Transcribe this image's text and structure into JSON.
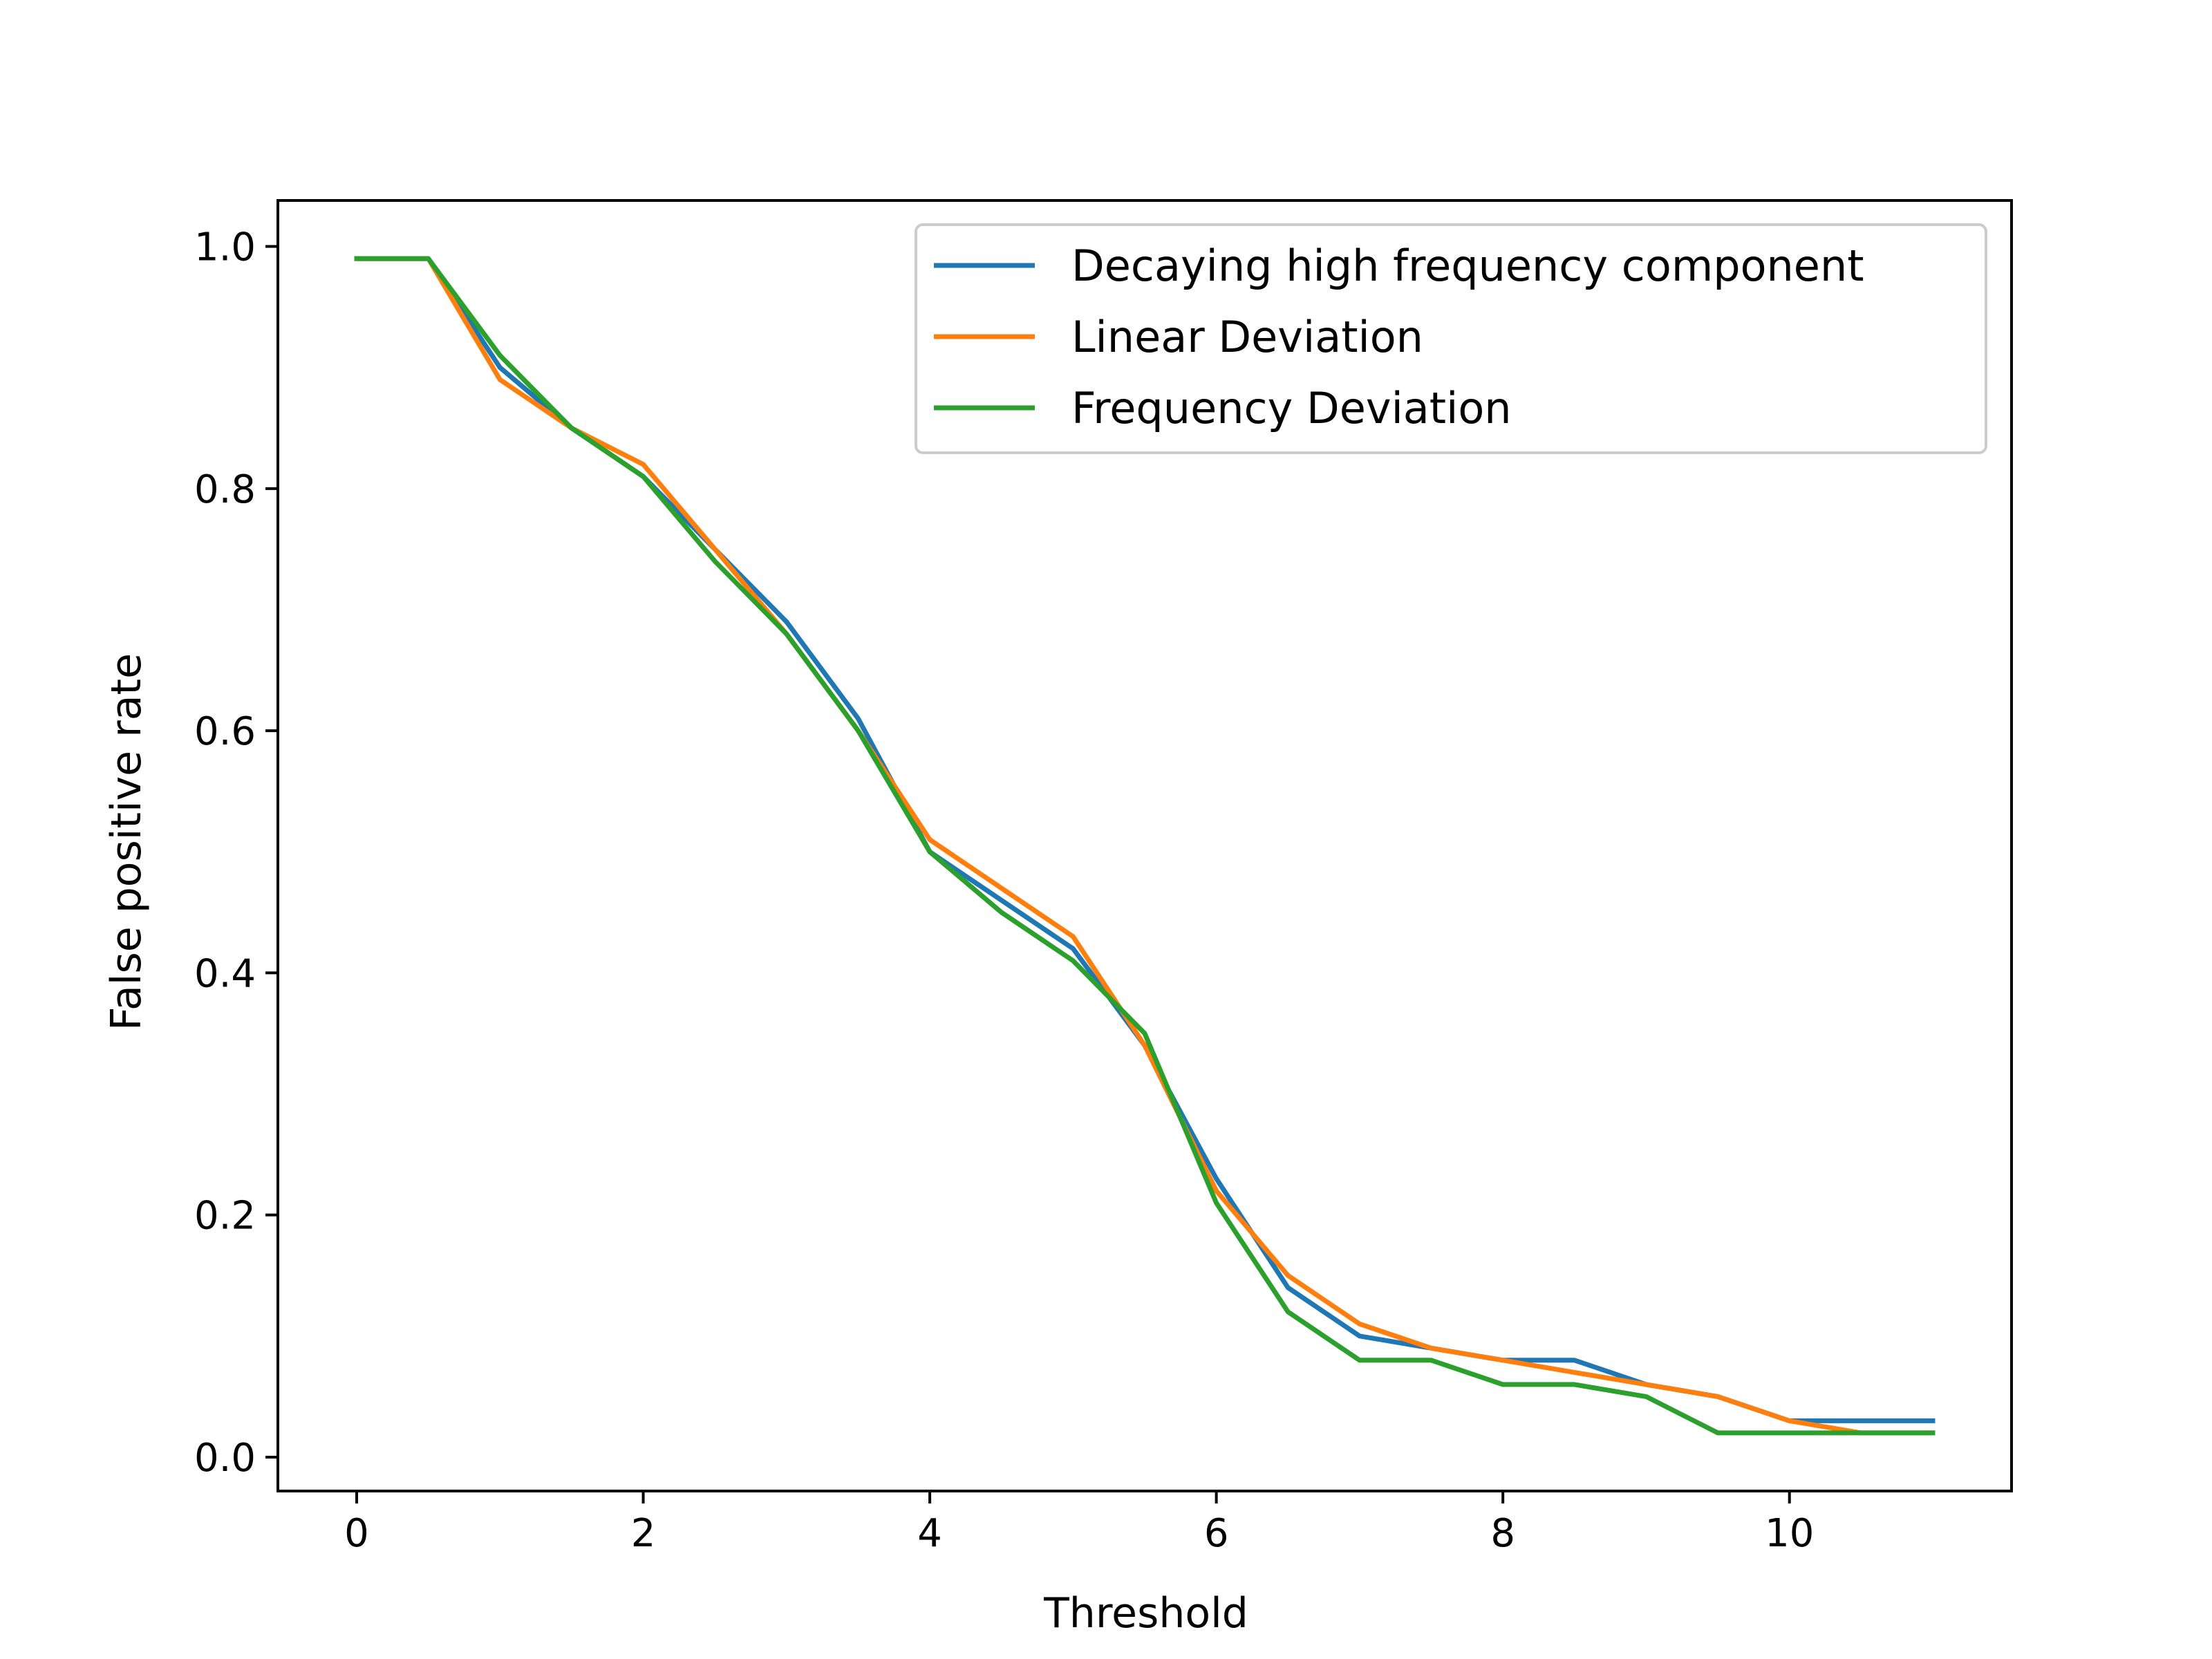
{
  "chart_data": {
    "type": "line",
    "title": "",
    "xlabel": "Threshold",
    "ylabel": "False positive rate",
    "xlim": [
      -0.55,
      11.55
    ],
    "ylim": [
      -0.028,
      1.038
    ],
    "xticks": [
      0,
      2,
      4,
      6,
      8,
      10
    ],
    "xtick_labels": [
      "0",
      "2",
      "4",
      "6",
      "8",
      "10"
    ],
    "yticks": [
      0.0,
      0.2,
      0.4,
      0.6,
      0.8,
      1.0
    ],
    "ytick_labels": [
      "0.0",
      "0.2",
      "0.4",
      "0.6",
      "0.8",
      "1.0"
    ],
    "grid": false,
    "legend_position": "top-right",
    "x": [
      0,
      0.5,
      1,
      1.5,
      2,
      2.5,
      3,
      3.5,
      4,
      4.5,
      5,
      5.5,
      6,
      6.5,
      7,
      7.5,
      8,
      8.5,
      9,
      9.5,
      10,
      10.5,
      11
    ],
    "series": [
      {
        "name": "Decaying high frequency component",
        "color": "#1f77b4",
        "values": [
          0.99,
          0.99,
          0.9,
          0.85,
          0.81,
          0.75,
          0.69,
          0.61,
          0.5,
          0.46,
          0.42,
          0.34,
          0.23,
          0.14,
          0.1,
          0.09,
          0.08,
          0.08,
          0.06,
          0.05,
          0.03,
          0.03,
          0.03
        ]
      },
      {
        "name": "Linear Deviation",
        "color": "#ff7f0e",
        "values": [
          0.99,
          0.99,
          0.89,
          0.85,
          0.82,
          0.75,
          0.68,
          0.6,
          0.51,
          0.47,
          0.43,
          0.34,
          0.22,
          0.15,
          0.11,
          0.09,
          0.08,
          0.07,
          0.06,
          0.05,
          0.03,
          0.02,
          0.02
        ]
      },
      {
        "name": "Frequency Deviation",
        "color": "#2ca02c",
        "values": [
          0.99,
          0.99,
          0.91,
          0.85,
          0.81,
          0.74,
          0.68,
          0.6,
          0.5,
          0.45,
          0.41,
          0.35,
          0.21,
          0.12,
          0.08,
          0.08,
          0.06,
          0.06,
          0.05,
          0.02,
          0.02,
          0.02,
          0.02
        ]
      }
    ]
  }
}
